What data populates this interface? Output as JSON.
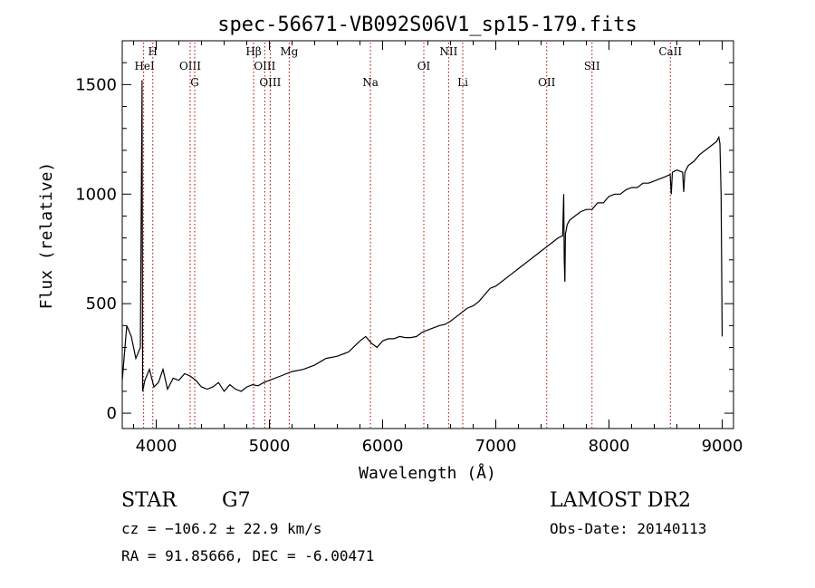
{
  "chart_data": {
    "type": "line",
    "title": "spec-56671-VB092S06V1_sp15-179.fits",
    "xlabel": "Wavelength (Å)",
    "ylabel": "Flux (relative)",
    "xlim": [
      3700,
      9100
    ],
    "ylim": [
      -70,
      1700
    ],
    "x_ticks": [
      4000,
      5000,
      6000,
      7000,
      8000,
      9000
    ],
    "y_ticks": [
      0,
      500,
      1000,
      1500
    ],
    "grid": false,
    "series": [
      {
        "x": [
          3700,
          3740,
          3780,
          3820,
          3860,
          3875,
          3880,
          3900,
          3940,
          3980,
          4020,
          4060,
          4100,
          4150,
          4200,
          4250,
          4300,
          4350,
          4400,
          4450,
          4500,
          4550,
          4600,
          4650,
          4700,
          4750,
          4800,
          4850,
          4900,
          4950,
          5000,
          5100,
          5200,
          5300,
          5400,
          5500,
          5600,
          5700,
          5800,
          5850,
          5900,
          5950,
          6000,
          6050,
          6100,
          6150,
          6200,
          6250,
          6300,
          6350,
          6400,
          6450,
          6500,
          6550,
          6600,
          6650,
          6700,
          6750,
          6800,
          6850,
          6900,
          6950,
          7000,
          7050,
          7100,
          7150,
          7200,
          7250,
          7300,
          7350,
          7400,
          7450,
          7500,
          7550,
          7590,
          7600,
          7605,
          7610,
          7615,
          7620,
          7630,
          7650,
          7700,
          7750,
          7800,
          7850,
          7900,
          7950,
          8000,
          8050,
          8100,
          8150,
          8200,
          8250,
          8300,
          8350,
          8400,
          8450,
          8500,
          8540,
          8550,
          8560,
          8600,
          8650,
          8660,
          8670,
          8700,
          8750,
          8800,
          8850,
          8900,
          8950,
          8960,
          8970,
          8980,
          8990,
          9000
        ],
        "y": [
          150,
          400,
          350,
          250,
          300,
          1520,
          100,
          150,
          200,
          120,
          140,
          200,
          110,
          160,
          150,
          180,
          170,
          150,
          120,
          110,
          120,
          140,
          100,
          130,
          110,
          100,
          120,
          130,
          125,
          140,
          150,
          170,
          190,
          200,
          220,
          250,
          260,
          280,
          330,
          350,
          320,
          300,
          330,
          340,
          340,
          350,
          345,
          345,
          350,
          370,
          380,
          390,
          400,
          405,
          420,
          440,
          460,
          480,
          490,
          510,
          540,
          570,
          580,
          600,
          620,
          640,
          660,
          680,
          700,
          720,
          740,
          760,
          780,
          800,
          810,
          1000,
          700,
          600,
          820,
          830,
          860,
          880,
          900,
          920,
          930,
          930,
          960,
          960,
          990,
          1000,
          1000,
          1020,
          1030,
          1030,
          1050,
          1050,
          1060,
          1070,
          1080,
          1090,
          1000,
          1100,
          1110,
          1100,
          1010,
          1100,
          1130,
          1150,
          1180,
          1200,
          1220,
          1240,
          1250,
          1260,
          1230,
          1000,
          350
        ]
      }
    ],
    "line_markers": [
      {
        "label": "HeI",
        "wavelength": 3889
      },
      {
        "label": "H",
        "wavelength": 3970
      },
      {
        "label": "OIII",
        "wavelength": 4300
      },
      {
        "label": "G",
        "wavelength": 4340
      },
      {
        "label": "Hβ",
        "wavelength": 4861
      },
      {
        "label": "OIII",
        "wavelength": 4959
      },
      {
        "label": "OIII",
        "wavelength": 5007
      },
      {
        "label": "Mg",
        "wavelength": 5175
      },
      {
        "label": "Na",
        "wavelength": 5893
      },
      {
        "label": "OI",
        "wavelength": 6364
      },
      {
        "label": "NII",
        "wavelength": 6583
      },
      {
        "label": "Li",
        "wavelength": 6708
      },
      {
        "label": "OII",
        "wavelength": 7450
      },
      {
        "label": "SII",
        "wavelength": 7850
      },
      {
        "label": "CaII",
        "wavelength": 8542
      }
    ]
  },
  "info": {
    "class_label": "STAR",
    "subclass": "G7",
    "survey": "LAMOST DR2",
    "velocity": "cz = −106.2 ± 22.9 km/s",
    "obs_date": "Obs-Date: 20140113",
    "coords": "RA =  91.85666, DEC =  -6.00471"
  }
}
